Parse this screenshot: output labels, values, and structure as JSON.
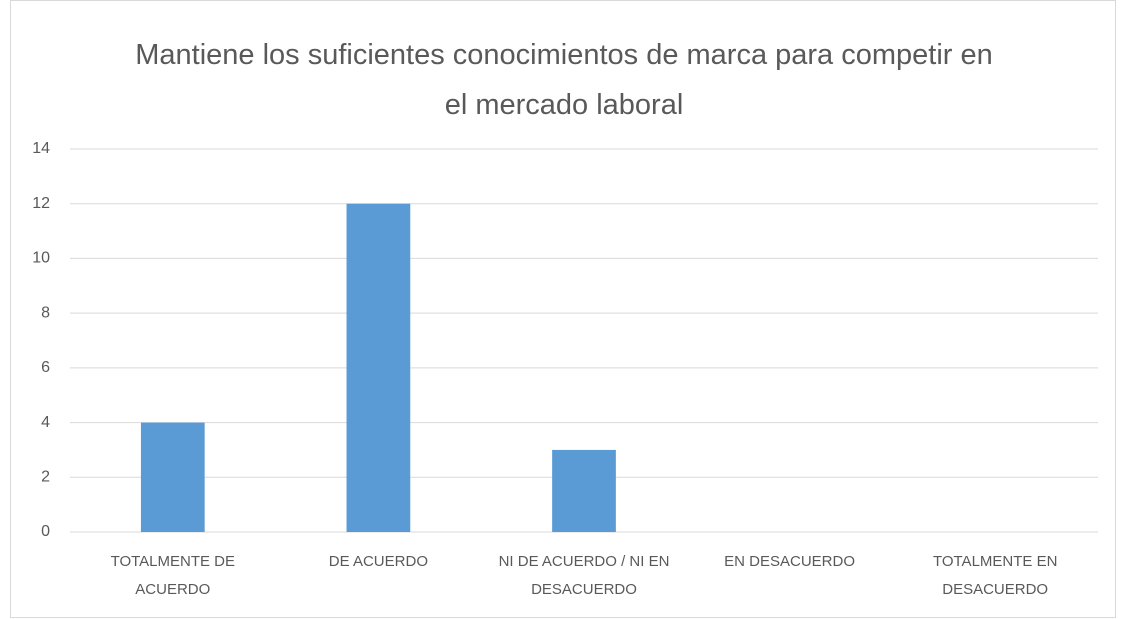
{
  "chart_data": {
    "type": "bar",
    "title": "Mantiene los suficientes conocimientos de marca para competir en el mercado laboral",
    "categories": [
      "TOTALMENTE DE ACUERDO",
      "DE ACUERDO",
      "NI DE ACUERDO / NI EN DESACUERDO",
      "EN DESACUERDO",
      "TOTALMENTE EN DESACUERDO"
    ],
    "values": [
      4,
      12,
      3,
      0,
      0
    ],
    "color": "#5b9bd5",
    "ylim": [
      0,
      14
    ],
    "yticks": [
      0,
      2,
      4,
      6,
      8,
      10,
      12,
      14
    ],
    "grid": true
  }
}
